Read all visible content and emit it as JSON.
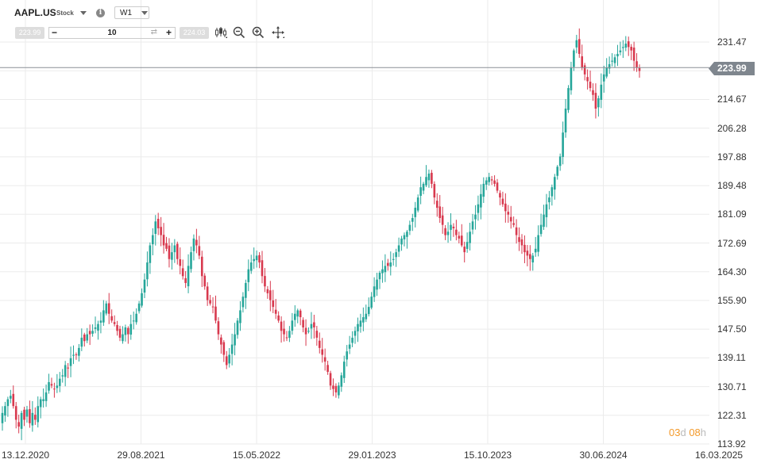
{
  "header": {
    "symbol": "AAPL.US",
    "symbol_type": "Stock",
    "info_glyph": "i",
    "timeframe": "W1",
    "sell_price": "223.99",
    "buy_price": "224.03",
    "quantity": "10",
    "minus": "−",
    "plus": "+",
    "swap_glyph": "⇄"
  },
  "current_price": "223.99",
  "countdown": {
    "d_val": "03",
    "d_unit": "d",
    "h_val": "08",
    "h_unit": "h"
  },
  "colors": {
    "up": "#26a69a",
    "down": "#d8394e",
    "grid": "#ebebeb",
    "price_line": "#8a8f96",
    "price_tag": "#7f868e",
    "countdown": "#f39a2b"
  },
  "icons": [
    "candles-icon",
    "zoom-out-icon",
    "zoom-in-icon",
    "crosshair-icon"
  ],
  "chart_data": {
    "type": "candlestick",
    "y_ticks": [
      "231.47",
      "223.06",
      "214.67",
      "206.28",
      "197.88",
      "189.48",
      "181.09",
      "172.69",
      "164.30",
      "155.90",
      "147.50",
      "139.11",
      "130.71",
      "122.31",
      "113.92"
    ],
    "x_ticks": [
      "13.12.2020",
      "29.08.2021",
      "15.05.2022",
      "29.01.2023",
      "15.10.2023",
      "30.06.2024",
      "16.03.2025"
    ],
    "ylim": [
      113.92,
      237
    ],
    "grid": true,
    "close_series": [
      123,
      125,
      127,
      128,
      125,
      121,
      119,
      123,
      121,
      124,
      120,
      123,
      121,
      125,
      127,
      127,
      129,
      132,
      131,
      130,
      131,
      133,
      134,
      137,
      136,
      139,
      140,
      140,
      142,
      145,
      144,
      146,
      146,
      147,
      148,
      149,
      150,
      153,
      155,
      152,
      150,
      149,
      147,
      145,
      146,
      148,
      146,
      149,
      150,
      152,
      155,
      158,
      162,
      167,
      172,
      175,
      179,
      177,
      175,
      172,
      171,
      168,
      170,
      172,
      168,
      166,
      163,
      161,
      166,
      170,
      174,
      172,
      169,
      163,
      160,
      156,
      155,
      154,
      150,
      146,
      143,
      140,
      137,
      140,
      143,
      146,
      150,
      153,
      157,
      161,
      165,
      167,
      168,
      169,
      167,
      163,
      160,
      158,
      156,
      154,
      152,
      150,
      147,
      146,
      145,
      147,
      150,
      152,
      153,
      151,
      148,
      146,
      147,
      149,
      148,
      145,
      142,
      140,
      138,
      135,
      131,
      130,
      129,
      131,
      134,
      138,
      141,
      143,
      145,
      147,
      149,
      150,
      151,
      152,
      154,
      157,
      160,
      162,
      164,
      165,
      166,
      166,
      167,
      168,
      170,
      172,
      174,
      175,
      176,
      178,
      180,
      183,
      186,
      189,
      190,
      192,
      193,
      190,
      186,
      183,
      180,
      178,
      175,
      176,
      178,
      177,
      175,
      174,
      172,
      170,
      173,
      176,
      179,
      181,
      184,
      187,
      190,
      191,
      192,
      191,
      190,
      188,
      186,
      184,
      182,
      181,
      179,
      178,
      175,
      173,
      172,
      170,
      169,
      168,
      169,
      171,
      175,
      178,
      181,
      184,
      186,
      189,
      192,
      195,
      198,
      205,
      212,
      218,
      224,
      229,
      232,
      228,
      224,
      222,
      220,
      218,
      216,
      212,
      215,
      219,
      222,
      224,
      225,
      226,
      227,
      228,
      229,
      230,
      231,
      230,
      229,
      226,
      224,
      223
    ]
  }
}
